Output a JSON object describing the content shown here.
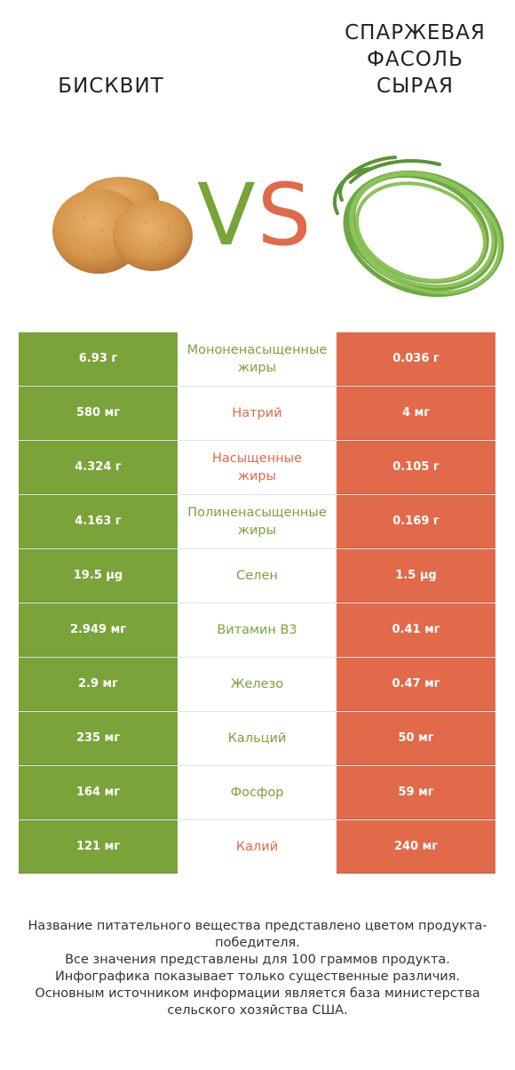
{
  "header": {
    "left_title": "БИСКВИТ",
    "right_title": "СПАРЖЕВАЯ\nФАСОЛЬ\nСЫРАЯ",
    "vs_v": "V",
    "vs_s": "S"
  },
  "colors": {
    "winner_left": "#7aa33a",
    "winner_right": "#e06a4a"
  },
  "chart_data": {
    "type": "table",
    "columns": [
      "БИСКВИТ",
      "",
      "СПАРЖЕВАЯ ФАСОЛЬ СЫРАЯ"
    ],
    "rows": [
      {
        "left": "6.93 г",
        "nutrient": "Мононенасыщенные\nжиры",
        "right": "0.036 г",
        "winner": "left"
      },
      {
        "left": "580 мг",
        "nutrient": "Натрий",
        "right": "4 мг",
        "winner": "right"
      },
      {
        "left": "4.324 г",
        "nutrient": "Насыщенные\nжиры",
        "right": "0.105 г",
        "winner": "right"
      },
      {
        "left": "4.163 г",
        "nutrient": "Полиненасыщенные\nжиры",
        "right": "0.169 г",
        "winner": "left"
      },
      {
        "left": "19.5 µg",
        "nutrient": "Селен",
        "right": "1.5 µg",
        "winner": "left"
      },
      {
        "left": "2.949 мг",
        "nutrient": "Витамин B3",
        "right": "0.41 мг",
        "winner": "left"
      },
      {
        "left": "2.9 мг",
        "nutrient": "Железо",
        "right": "0.47 мг",
        "winner": "left"
      },
      {
        "left": "235 мг",
        "nutrient": "Кальций",
        "right": "50 мг",
        "winner": "left"
      },
      {
        "left": "164 мг",
        "nutrient": "Фосфор",
        "right": "59 мг",
        "winner": "left"
      },
      {
        "left": "121 мг",
        "nutrient": "Калий",
        "right": "240 мг",
        "winner": "right"
      }
    ]
  },
  "footer": {
    "lines": [
      "Название питательного вещества представлено цветом продукта-победителя.",
      "Все значения представлены для 100 граммов продукта.",
      "Инфографика показывает только существенные различия.",
      "Основным источником информации является база министерства сельского хозяйства США."
    ]
  }
}
